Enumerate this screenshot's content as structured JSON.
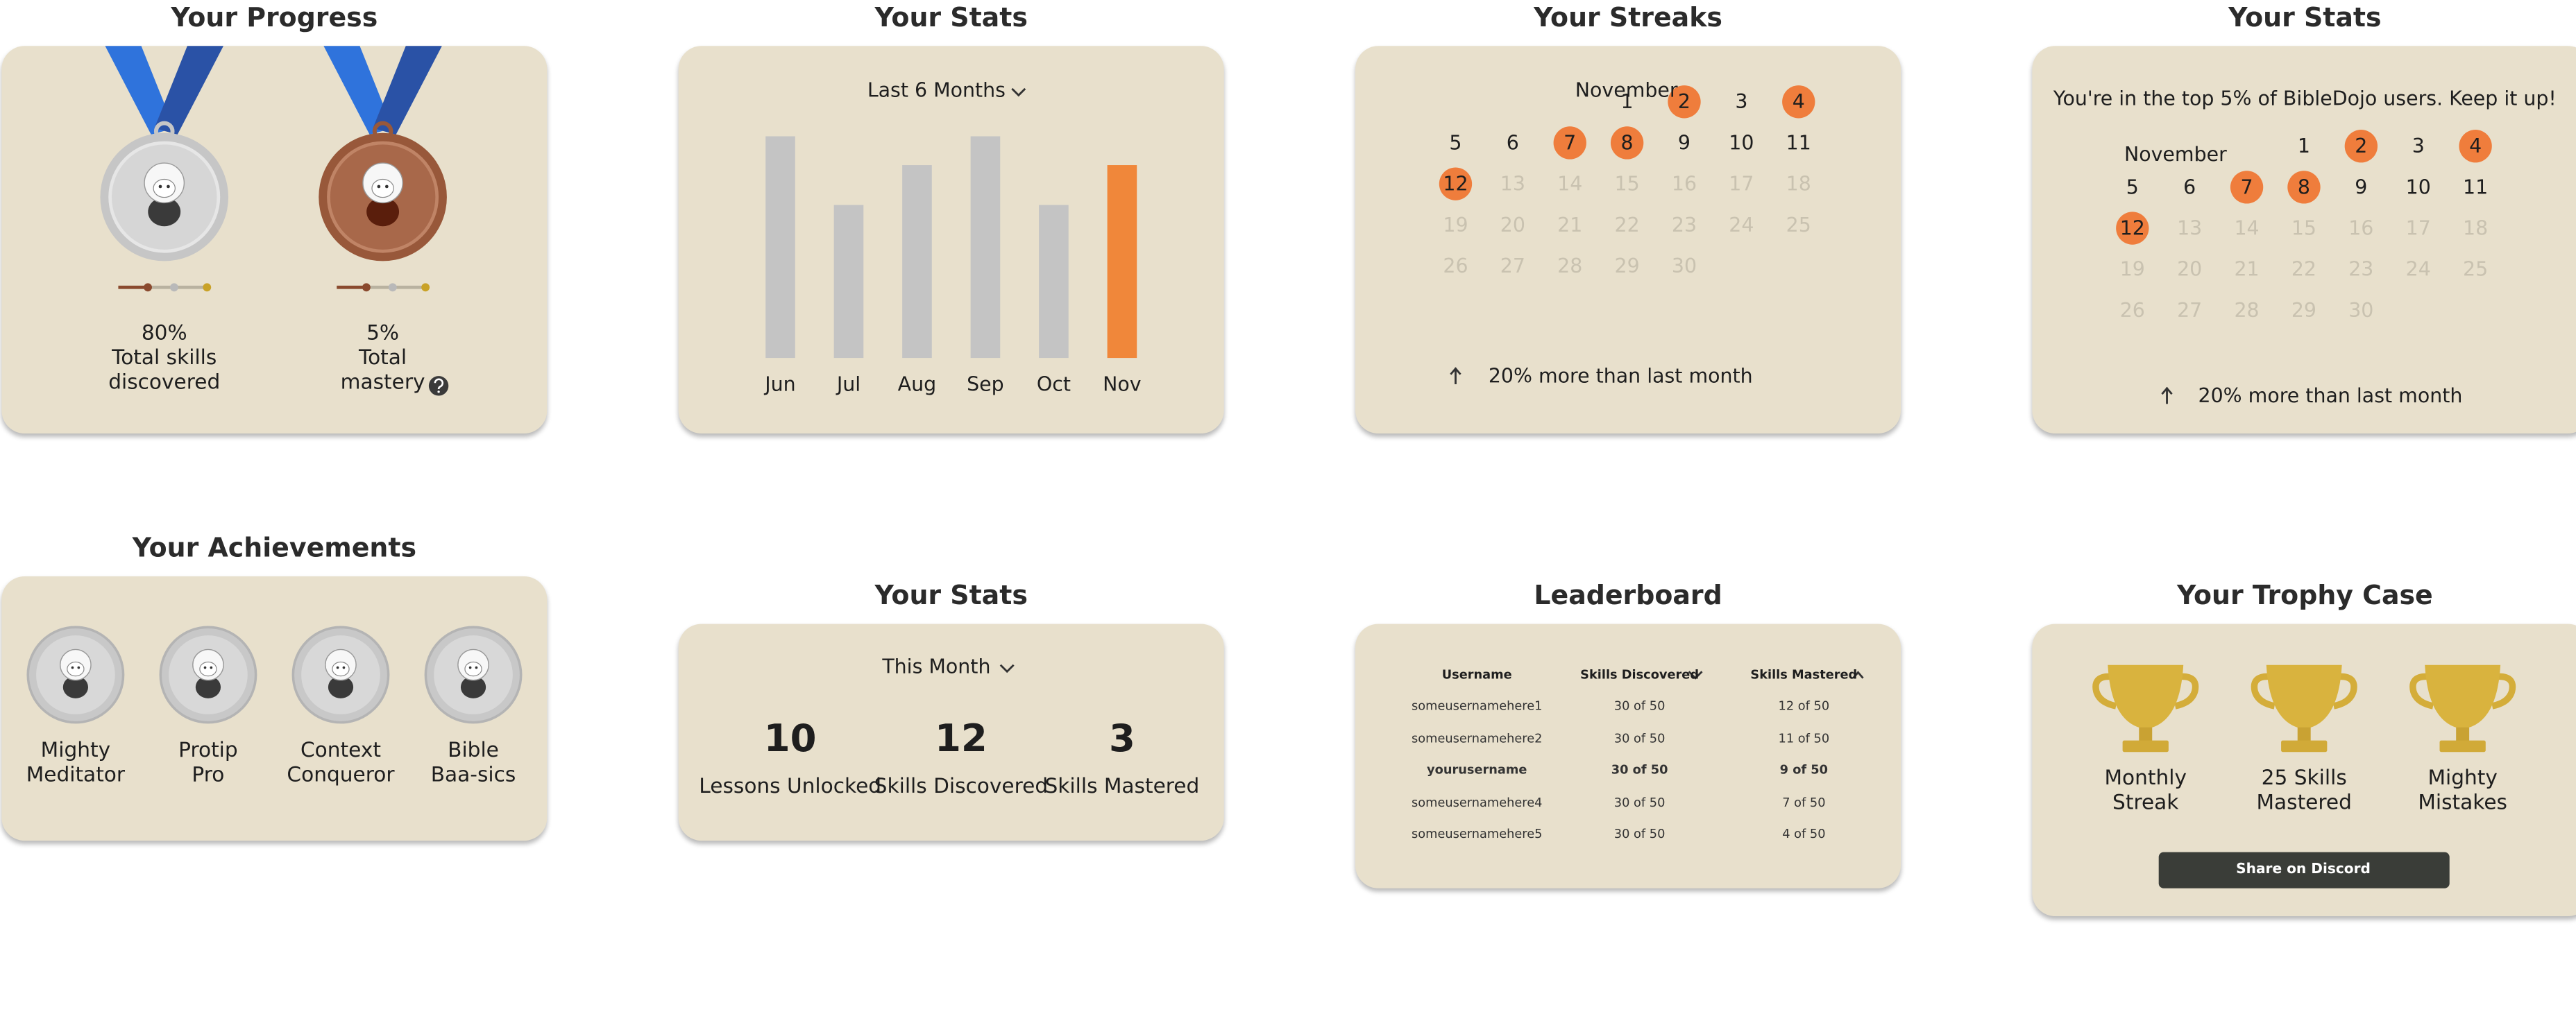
{
  "progress": {
    "title": "Your Progress",
    "medals": [
      {
        "metal": "silver",
        "value": "80%",
        "label": [
          "Total skills",
          "discovered"
        ],
        "help": false
      },
      {
        "metal": "bronze",
        "value": "5%",
        "label": [
          "Total",
          "mastery"
        ],
        "help": true
      }
    ]
  },
  "monthly_stats": {
    "title": "Your Stats",
    "dropdown": "Last 6 Months",
    "chart": {
      "type": "bar",
      "categories": [
        "Jun",
        "Jul",
        "Aug",
        "Sep",
        "Oct",
        "Nov"
      ],
      "values": [
        100,
        69,
        87,
        100,
        69,
        87
      ],
      "colors": [
        "#c4c4c4",
        "#c4c4c4",
        "#c4c4c4",
        "#c4c4c4",
        "#c4c4c4",
        "#f0873a"
      ],
      "ylim": [
        0,
        100
      ]
    }
  },
  "streaks": {
    "title": "Your Streaks",
    "calendar": {
      "month": "November",
      "days": [
        null,
        null,
        null,
        1,
        2,
        3,
        4,
        5,
        6,
        7,
        8,
        9,
        10,
        11,
        12,
        13,
        14,
        15,
        16,
        17,
        18,
        19,
        20,
        21,
        22,
        23,
        24,
        25,
        26,
        27,
        28,
        29,
        30
      ],
      "streak_days": [
        2,
        4,
        7,
        8,
        12
      ],
      "today": 12
    },
    "trend": "20% more than last month"
  },
  "ranking": {
    "title": "Your Stats",
    "message": "You're in the top 5% of BibleDojo users. Keep it up!",
    "calendar": {
      "month": "November",
      "days": [
        null,
        null,
        null,
        1,
        2,
        3,
        4,
        5,
        6,
        7,
        8,
        9,
        10,
        11,
        12,
        13,
        14,
        15,
        16,
        17,
        18,
        19,
        20,
        21,
        22,
        23,
        24,
        25,
        26,
        27,
        28,
        29,
        30
      ],
      "streak_days": [
        2,
        4,
        7,
        8,
        12
      ],
      "today": 12
    },
    "trend": "20% more than last month"
  },
  "achievements": {
    "title": "Your Achievements",
    "badges": [
      [
        "Mighty",
        "Meditator"
      ],
      [
        "Protip",
        "Pro"
      ],
      [
        "Context",
        "Conqueror"
      ],
      [
        "Bible",
        "Baa-sics"
      ]
    ]
  },
  "month_stats": {
    "title": "Your Stats",
    "dropdown": "This Month",
    "items": [
      {
        "value": 10,
        "label": "Lessons Unlocked"
      },
      {
        "value": 12,
        "label": "Skills Discovered"
      },
      {
        "value": 3,
        "label": "Skills Mastered"
      }
    ]
  },
  "leaderboard": {
    "title": "Leaderboard",
    "columns": [
      "Username",
      "Skills Discovered",
      "Skills Mastered"
    ],
    "rows": [
      [
        "someusernamehere1",
        "30 of 50",
        "12 of 50"
      ],
      [
        "someusernamehere2",
        "30 of 50",
        "11 of 50"
      ],
      [
        "yourusername",
        "30 of 50",
        "9 of 50"
      ],
      [
        "someusernamehere4",
        "30 of 50",
        "7 of 50"
      ],
      [
        "someusernamehere5",
        "30 of 50",
        "4 of 50"
      ]
    ],
    "current_row": 2
  },
  "trophies": {
    "title": "Your Trophy Case",
    "items": [
      [
        "Monthly",
        "Streak"
      ],
      [
        "25 Skills",
        "Mastered"
      ],
      [
        "Mighty",
        "Mistakes"
      ]
    ],
    "button": "Share on Discord"
  }
}
